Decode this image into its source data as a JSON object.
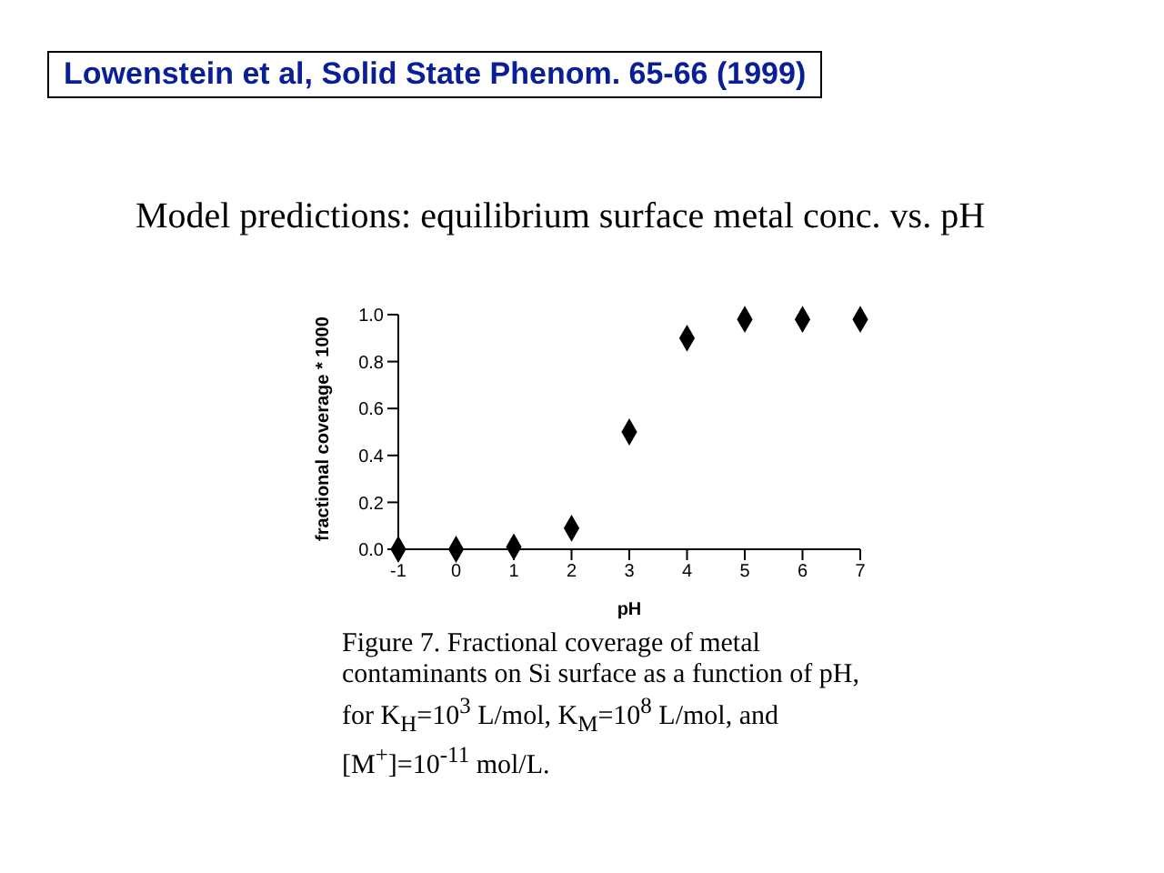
{
  "chart_data": {
    "type": "scatter",
    "title": "Model predictions: equilibrium surface metal conc. vs. pH",
    "xlabel": "pH",
    "ylabel": "fractional coverage * 1000",
    "x": [
      -1,
      0,
      1,
      2,
      3,
      4,
      5,
      6,
      7
    ],
    "series": [
      {
        "color": "#000000",
        "values": [
          0,
          0,
          0.01,
          0.09,
          0.5,
          0.9,
          0.98,
          0.98,
          0.98
        ]
      }
    ],
    "xlim": [
      -1,
      7
    ],
    "xticks": [
      -1,
      0,
      1,
      2,
      3,
      4,
      5,
      6,
      7
    ],
    "ylim": [
      0,
      1
    ],
    "yticks": [
      {
        "value": 0,
        "label": "0.0"
      },
      0.2,
      0.4,
      {
        "value": 0.6,
        "label": "0.6"
      },
      0.8,
      {
        "value": 1,
        "label": "1.0"
      }
    ],
    "marker": "diamond",
    "grid": false,
    "legend": false,
    "annotations": [
      "Lowenstein et al, Solid State Phenom. 65-66 (1999)",
      "Figure 7.  Fractional coverage of metal contaminants on Si surface as a function of pH, for K$_{H}$=10$^{3}$ L/mol, K$_{M}$=10$^{8}$ L/mol, and [M$^{+}$]=10$^{-11}$ mol/L."
    ]
  }
}
